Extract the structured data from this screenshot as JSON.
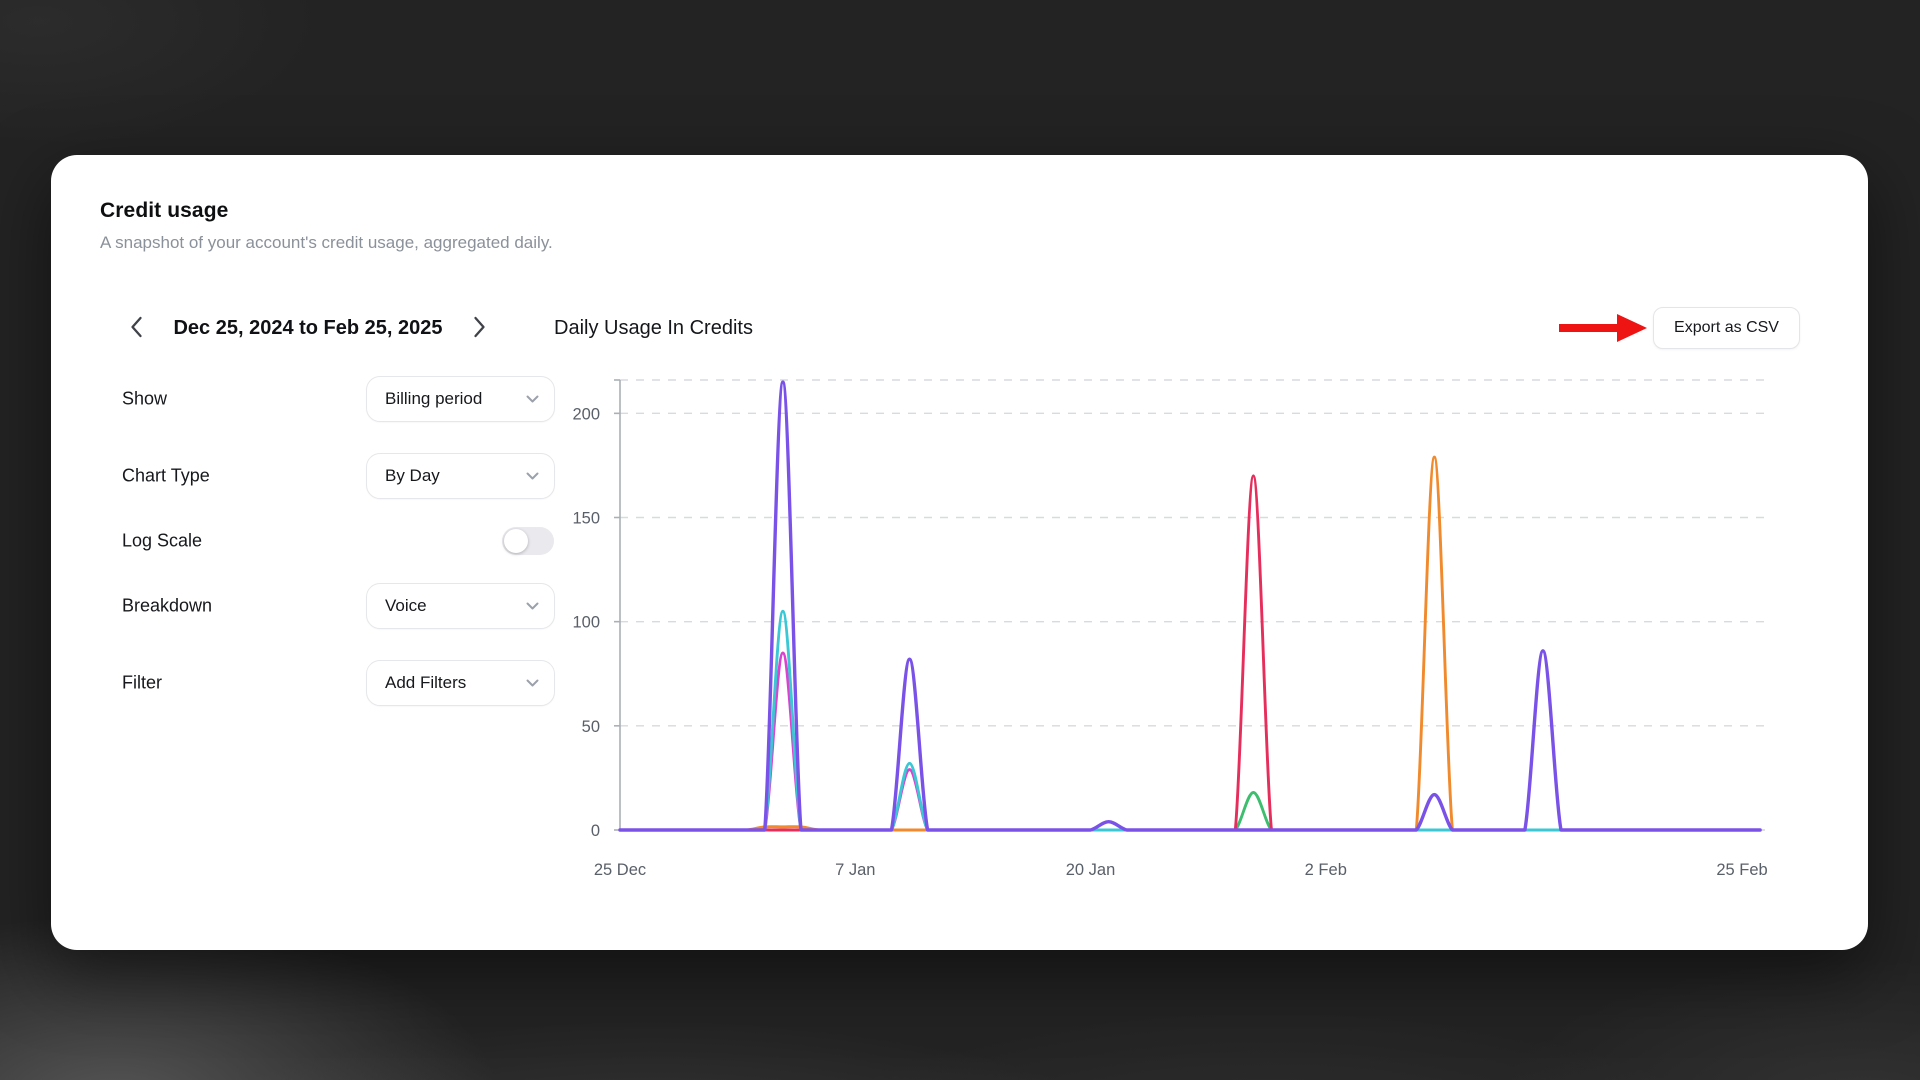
{
  "page": {
    "background": "#232323"
  },
  "header": {
    "title": "Credit usage",
    "subtitle": "A snapshot of your account's credit usage, aggregated daily."
  },
  "toolbar": {
    "date_range": "Dec 25, 2024 to Feb 25, 2025",
    "chart_title": "Daily Usage In Credits",
    "export_label": "Export as CSV",
    "annotation_arrow_color": "#ee1414"
  },
  "controls": [
    {
      "label": "Show",
      "type": "select",
      "value": "Billing period"
    },
    {
      "label": "Chart Type",
      "type": "select",
      "value": "By Day"
    },
    {
      "label": "Log Scale",
      "type": "toggle",
      "value": "off"
    },
    {
      "label": "Breakdown",
      "type": "select",
      "value": "Voice"
    },
    {
      "label": "Filter",
      "type": "select",
      "value": "Add Filters"
    }
  ],
  "chart_data": {
    "type": "line",
    "title": "Daily Usage In Credits",
    "xlabel": "",
    "ylabel": "",
    "x_unit": "day (Dec 25, 2024 = day 0)",
    "x_tick_labels": [
      {
        "label": "25 Dec",
        "day": 0
      },
      {
        "label": "7 Jan",
        "day": 13
      },
      {
        "label": "20 Jan",
        "day": 26
      },
      {
        "label": "2 Feb",
        "day": 39
      },
      {
        "label": "25 Feb",
        "day": 62
      }
    ],
    "x_range_days": [
      0,
      63
    ],
    "y_ticks": [
      0,
      50,
      100,
      150,
      200
    ],
    "y_max": 216,
    "grid": "dashed-horizontal",
    "legend": "none",
    "series": [
      {
        "name": "green",
        "color": "#3dbd6e",
        "baseline": 0,
        "spikes": {
          "35": 18
        }
      },
      {
        "name": "red",
        "color": "#e62e5c",
        "baseline": 0,
        "spikes": {
          "35": 170
        }
      },
      {
        "name": "orange",
        "color": "#f08a2d",
        "baseline": 0,
        "spikes": {
          "8": 1.5,
          "9": 1.5,
          "10": 1.5,
          "45": 179
        }
      },
      {
        "name": "magenta",
        "color": "#d943ce",
        "baseline": 0,
        "spikes": {
          "9": 85,
          "16": 29
        }
      },
      {
        "name": "teal",
        "color": "#3bc7d4",
        "baseline": 0,
        "spikes": {
          "9": 105,
          "16": 32
        }
      },
      {
        "name": "purple",
        "color": "#7a52e8",
        "baseline": 0,
        "spikes": {
          "9": 215,
          "16": 82,
          "27": 4,
          "45": 17,
          "51": 86
        }
      }
    ]
  }
}
